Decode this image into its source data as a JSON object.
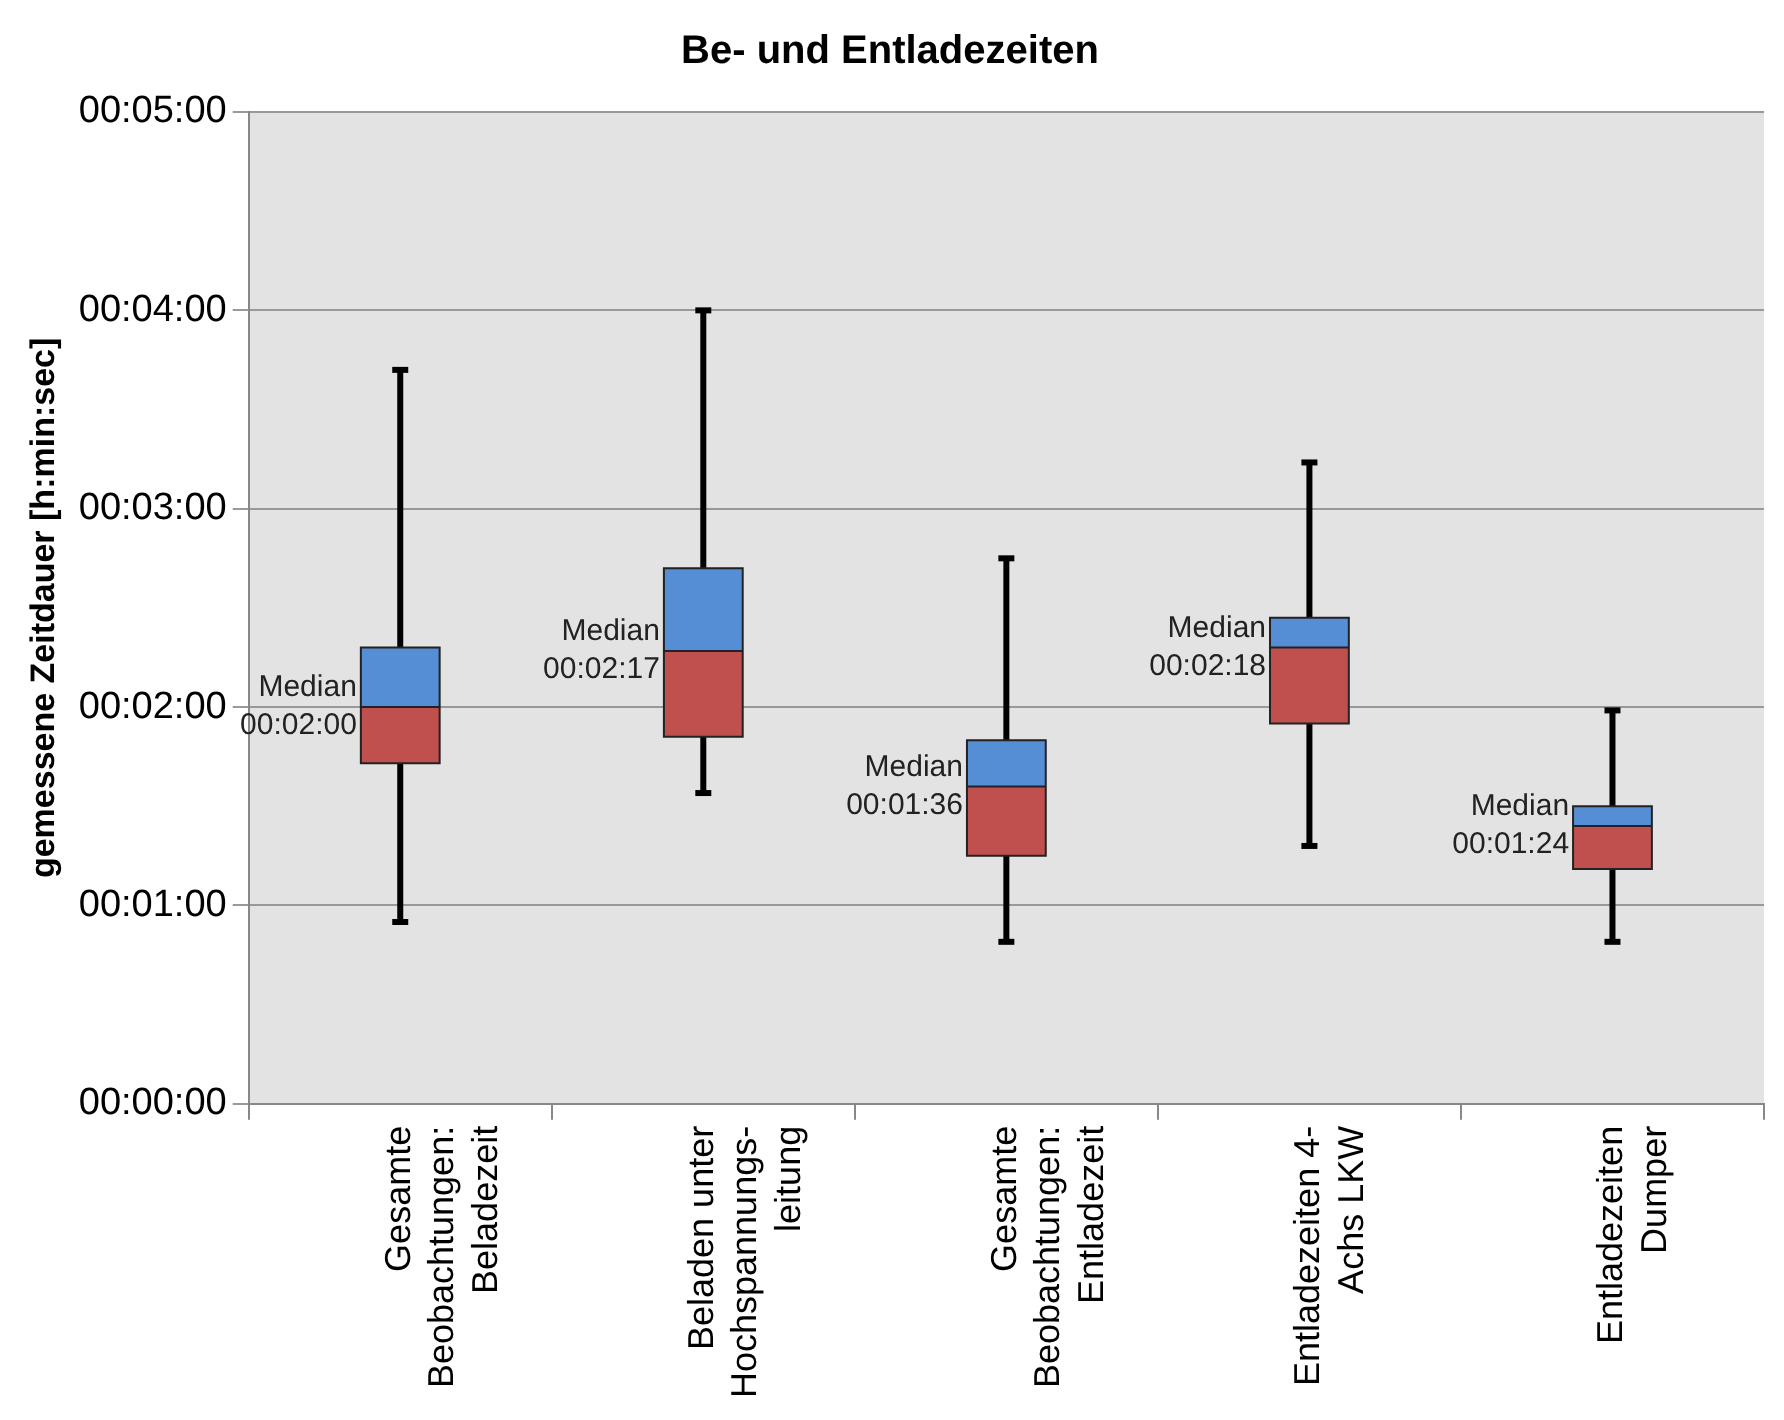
{
  "chart_data": {
    "type": "box",
    "title": "Be- und Entladezeiten",
    "ylabel": "gemessene Zeitdauer [h:min:sec]",
    "categories": [
      "Gesamte\nBeobachtungen:\nBeladezeit",
      "Beladen unter\nHochspannungs-\nleitung",
      "Gesamte\nBeobachtungen:\nEntladezeit",
      "Entladezeiten 4-\nAchs LKW",
      "Entladezeiten\nDumper"
    ],
    "series": [
      {
        "color": "#c0504d",
        "boxes": [
          {
            "low": 55,
            "q1": 103,
            "median": 120,
            "q3": 138,
            "high": 222
          },
          {
            "low": 94,
            "q1": 111,
            "median": 137,
            "q3": 162,
            "high": 240
          },
          {
            "low": 49,
            "q1": 75,
            "median": 96,
            "q3": 110,
            "high": 165
          },
          {
            "low": 78,
            "q1": 115,
            "median": 138,
            "q3": 147,
            "high": 194
          },
          {
            "low": 49,
            "q1": 71,
            "median": 84,
            "q3": 90,
            "high": 119
          }
        ]
      }
    ],
    "ylim": [
      0,
      300
    ],
    "yticks": [
      {
        "value": 0,
        "label": "00:00:00"
      },
      {
        "value": 60,
        "label": "00:01:00"
      },
      {
        "value": 120,
        "label": "00:02:00"
      },
      {
        "value": 180,
        "label": "00:03:00"
      },
      {
        "value": 240,
        "label": "00:04:00"
      },
      {
        "value": 300,
        "label": "00:05:00"
      }
    ],
    "grid": "y",
    "legend": false,
    "annotations": [
      {
        "text": "Median\n00:02:00",
        "x": "Gesamte\nBeobachtungen:\nBeladezeit",
        "y": 120
      },
      {
        "text": "Median\n00:02:17",
        "x": "Beladen unter\nHochspannungs-\nleitung",
        "y": 137
      },
      {
        "text": "Median\n00:01:36",
        "x": "Gesamte\nBeobachtungen:\nEntladezeit",
        "y": 96
      },
      {
        "text": "Median\n00:02:18",
        "x": "Entladezeiten 4-\nAchs LKW",
        "y": 138
      },
      {
        "text": "Median\n00:01:24",
        "x": "Entladezeiten\nDumper",
        "y": 84
      }
    ]
  }
}
